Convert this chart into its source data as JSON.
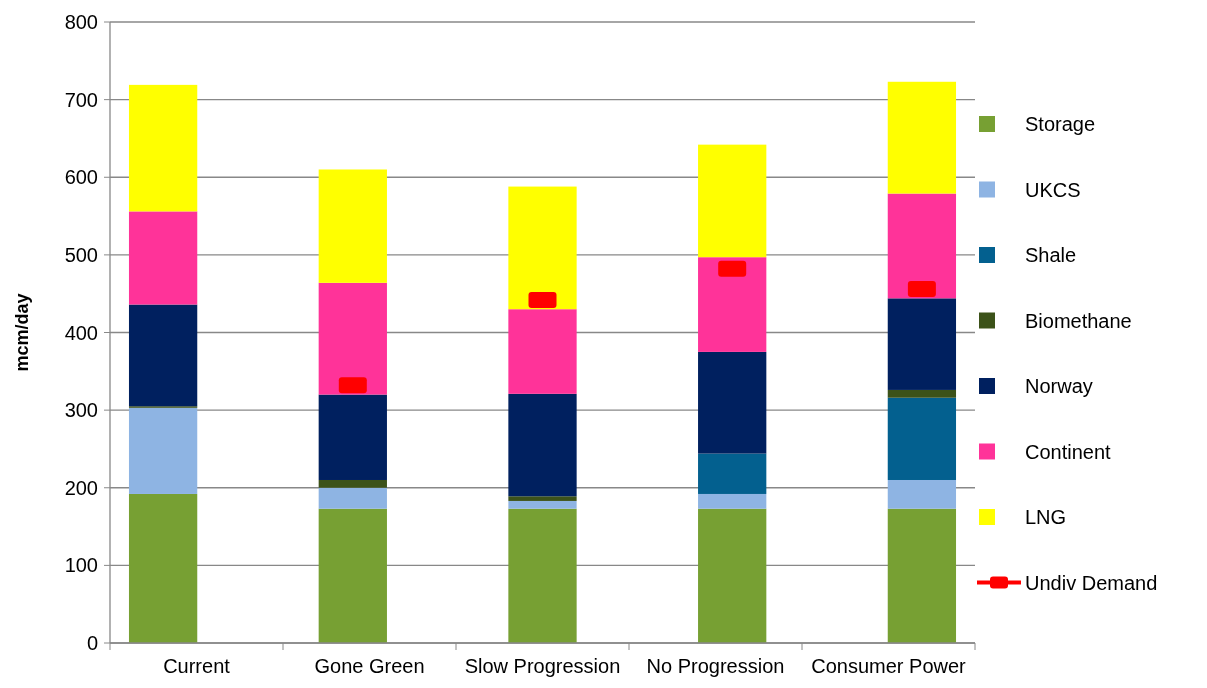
{
  "chart_data": {
    "type": "bar",
    "stacked": true,
    "ylabel": "mcm/day",
    "categories": [
      "Current",
      "Gone Green",
      "Slow Progression",
      "No Progression",
      "Consumer Power"
    ],
    "series": [
      {
        "name": "Storage",
        "color": "#77a033",
        "values": [
          192,
          173,
          173,
          173,
          173
        ]
      },
      {
        "name": "UKCS",
        "color": "#8eb4e3",
        "values": [
          111,
          27,
          10,
          19,
          37
        ]
      },
      {
        "name": "Shale",
        "color": "#03608f",
        "values": [
          0,
          0,
          0,
          52,
          106
        ]
      },
      {
        "name": "Biomethane",
        "color": "#3c5219",
        "values": [
          2,
          10,
          6,
          0,
          10
        ]
      },
      {
        "name": "Norway",
        "color": "#00205f",
        "values": [
          131,
          110,
          132,
          131,
          118
        ]
      },
      {
        "name": "Continent",
        "color": "#ff3399",
        "values": [
          120,
          144,
          109,
          122,
          135
        ]
      },
      {
        "name": "LNG",
        "color": "#ffff00",
        "values": [
          163,
          146,
          158,
          145,
          144
        ]
      },
      {
        "name": "Undiv Demand",
        "type": "scatter",
        "color": "#ff0000",
        "values": [
          null,
          332,
          442,
          482,
          456
        ]
      }
    ],
    "ylim": [
      0,
      800
    ],
    "yticks": [
      0,
      100,
      200,
      300,
      400,
      500,
      600,
      700,
      800
    ],
    "grid": "y",
    "legend": "right"
  }
}
